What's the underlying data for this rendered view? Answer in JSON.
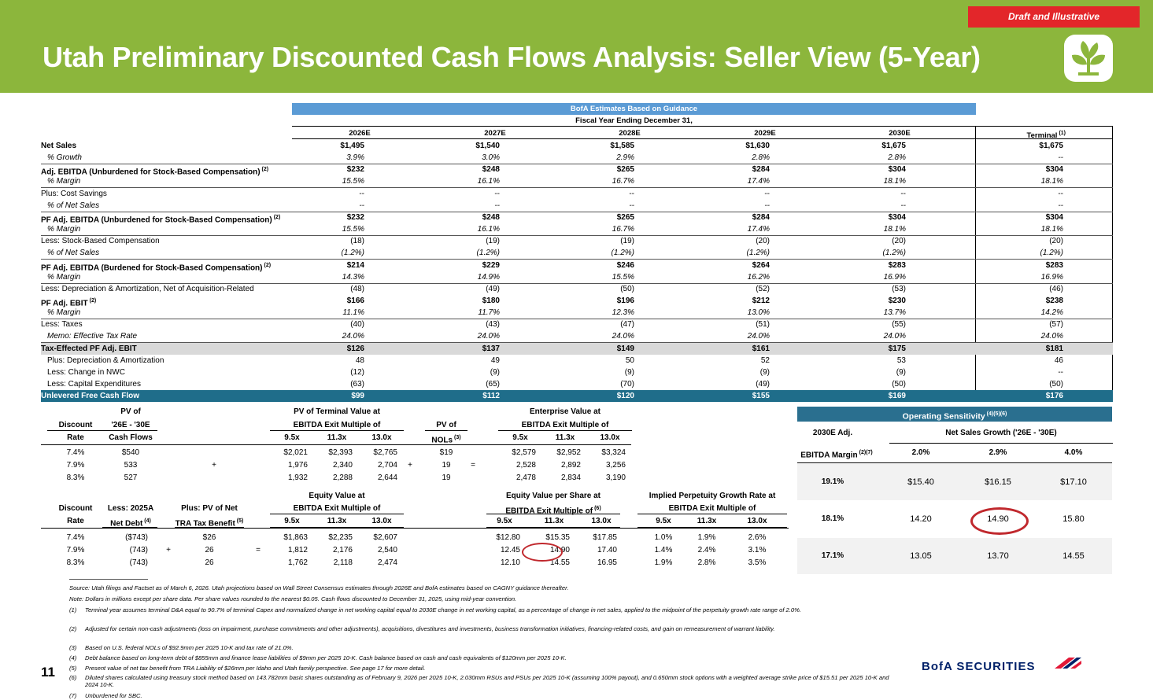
{
  "header": {
    "title": "Utah Preliminary Discounted Cash Flows Analysis: Seller View (5-Year)",
    "draft_badge": "Draft and Illustrative"
  },
  "dcf": {
    "banner": "BofA Estimates Based on Guidance",
    "fiscal_label": "Fiscal Year Ending December 31,",
    "columns": [
      "2026E",
      "2027E",
      "2028E",
      "2029E",
      "2030E",
      "Terminal"
    ],
    "terminal_sup": "(1)",
    "rows": [
      {
        "label": "Net Sales",
        "sup": "",
        "style": "bold",
        "values": [
          "$1,495",
          "$1,540",
          "$1,585",
          "$1,630",
          "$1,675",
          "$1,675"
        ]
      },
      {
        "label": "% Growth",
        "sup": "",
        "style": "italic",
        "values": [
          "3.9%",
          "3.0%",
          "2.9%",
          "2.8%",
          "2.8%",
          "--"
        ]
      },
      {
        "label": "Adj. EBITDA (Unburdened for Stock-Based Compensation)",
        "sup": "(2)",
        "style": "bold",
        "values": [
          "$232",
          "$248",
          "$265",
          "$284",
          "$304",
          "$304"
        ]
      },
      {
        "label": "% Margin",
        "sup": "",
        "style": "italic",
        "values": [
          "15.5%",
          "16.1%",
          "16.7%",
          "17.4%",
          "18.1%",
          "18.1%"
        ]
      },
      {
        "label": "Plus: Cost Savings",
        "sup": "",
        "style": "plain",
        "values": [
          "--",
          "--",
          "--",
          "--",
          "--",
          "--"
        ]
      },
      {
        "label": "% of Net Sales",
        "sup": "",
        "style": "italic",
        "values": [
          "--",
          "--",
          "--",
          "--",
          "--",
          "--"
        ]
      },
      {
        "label": "PF Adj. EBITDA (Unburdened for Stock-Based Compensation)",
        "sup": "(2)",
        "style": "bold",
        "values": [
          "$232",
          "$248",
          "$265",
          "$284",
          "$304",
          "$304"
        ]
      },
      {
        "label": "% Margin",
        "sup": "",
        "style": "italic",
        "values": [
          "15.5%",
          "16.1%",
          "16.7%",
          "17.4%",
          "18.1%",
          "18.1%"
        ]
      },
      {
        "label": "Less: Stock-Based Compensation",
        "sup": "",
        "style": "plain",
        "values": [
          "(18)",
          "(19)",
          "(19)",
          "(20)",
          "(20)",
          "(20)"
        ]
      },
      {
        "label": "% of Net Sales",
        "sup": "",
        "style": "italic",
        "values": [
          "(1.2%)",
          "(1.2%)",
          "(1.2%)",
          "(1.2%)",
          "(1.2%)",
          "(1.2%)"
        ]
      },
      {
        "label": "PF Adj. EBITDA (Burdened for Stock-Based Compensation)",
        "sup": "(2)",
        "style": "bold",
        "values": [
          "$214",
          "$229",
          "$246",
          "$264",
          "$283",
          "$283"
        ]
      },
      {
        "label": "% Margin",
        "sup": "",
        "style": "italic",
        "values": [
          "14.3%",
          "14.9%",
          "15.5%",
          "16.2%",
          "16.9%",
          "16.9%"
        ]
      },
      {
        "label": "Less: Depreciation & Amortization, Net of Acquisition-Related",
        "sup": "",
        "style": "plain",
        "values": [
          "(48)",
          "(49)",
          "(50)",
          "(52)",
          "(53)",
          "(46)"
        ]
      },
      {
        "label": "PF Adj. EBIT",
        "sup": "(2)",
        "style": "bold",
        "values": [
          "$166",
          "$180",
          "$196",
          "$212",
          "$230",
          "$238"
        ]
      },
      {
        "label": "% Margin",
        "sup": "",
        "style": "italic",
        "values": [
          "11.1%",
          "11.7%",
          "12.3%",
          "13.0%",
          "13.7%",
          "14.2%"
        ]
      },
      {
        "label": "Less: Taxes",
        "sup": "",
        "style": "plain",
        "values": [
          "(40)",
          "(43)",
          "(47)",
          "(51)",
          "(55)",
          "(57)"
        ]
      },
      {
        "label": "Memo: Effective Tax Rate",
        "sup": "",
        "style": "italic",
        "values": [
          "24.0%",
          "24.0%",
          "24.0%",
          "24.0%",
          "24.0%",
          "24.0%"
        ]
      },
      {
        "label": "Tax-Effected PF Adj. EBIT",
        "sup": "",
        "style": "grey",
        "values": [
          "$126",
          "$137",
          "$149",
          "$161",
          "$175",
          "$181"
        ]
      },
      {
        "label": "Plus: Depreciation & Amortization",
        "sup": "",
        "style": "indent",
        "values": [
          "48",
          "49",
          "50",
          "52",
          "53",
          "46"
        ]
      },
      {
        "label": "Less: Change in NWC",
        "sup": "",
        "style": "indent",
        "values": [
          "(12)",
          "(9)",
          "(9)",
          "(9)",
          "(9)",
          "--"
        ]
      },
      {
        "label": "Less: Capital Expenditures",
        "sup": "",
        "style": "indent",
        "values": [
          "(63)",
          "(65)",
          "(70)",
          "(49)",
          "(50)",
          "(50)"
        ]
      },
      {
        "label": "Unlevered Free Cash Flow",
        "sup": "",
        "style": "ufcf",
        "values": [
          "$99",
          "$112",
          "$120",
          "$155",
          "$169",
          "$176"
        ]
      }
    ]
  },
  "ev": {
    "h_discount": [
      "Discount",
      "Rate"
    ],
    "h_pv": [
      "PV of",
      "'26E - '30E",
      "Cash Flows"
    ],
    "h_pvtv": [
      "PV of Terminal Value at",
      "EBITDA Exit Multiple of"
    ],
    "h_nols": [
      "PV of",
      "NOLs"
    ],
    "nols_sup": "(3)",
    "h_ev": [
      "Enterprise Value at",
      "EBITDA Exit Multiple of"
    ],
    "multiples": [
      "9.5x",
      "11.3x",
      "13.0x"
    ],
    "rows": [
      {
        "rate": "7.4%",
        "pv": "$540",
        "op1": "",
        "tv": [
          "$2,021",
          "$2,393",
          "$2,765"
        ],
        "op2": "",
        "nol": "$19",
        "op3": "",
        "ev": [
          "$2,579",
          "$2,952",
          "$3,324"
        ]
      },
      {
        "rate": "7.9%",
        "pv": "533",
        "op1": "+",
        "tv": [
          "1,976",
          "2,340",
          "2,704"
        ],
        "op2": "+",
        "nol": "19",
        "op3": "=",
        "ev": [
          "2,528",
          "2,892",
          "3,256"
        ]
      },
      {
        "rate": "8.3%",
        "pv": "527",
        "op1": "",
        "tv": [
          "1,932",
          "2,288",
          "2,644"
        ],
        "op2": "",
        "nol": "19",
        "op3": "",
        "ev": [
          "2,478",
          "2,834",
          "3,190"
        ]
      }
    ]
  },
  "eq": {
    "h_discount": [
      "Discount",
      "Rate"
    ],
    "h_debt": [
      "Less: 2025A",
      "Net Debt"
    ],
    "debt_sup": "(4)",
    "h_tra": [
      "Plus: PV of Net",
      "TRA Tax Benefit"
    ],
    "tra_sup": "(5)",
    "h_eqv": [
      "Equity Value at",
      "EBITDA Exit Multiple of"
    ],
    "h_eps": [
      "Equity Value per Share at",
      "EBITDA Exit Multiple of"
    ],
    "eps_sup": "(6)",
    "h_pgr": [
      "Implied Perpetuity Growth Rate at",
      "EBITDA Exit Multiple of"
    ],
    "multiples": [
      "9.5x",
      "11.3x",
      "13.0x"
    ],
    "rows": [
      {
        "rate": "7.4%",
        "debt": "($743)",
        "op1": "",
        "tra": "$26",
        "op2": "",
        "eqv": [
          "$1,863",
          "$2,235",
          "$2,607"
        ],
        "eps": [
          "$12.80",
          "$15.35",
          "$17.85"
        ],
        "pgr": [
          "1.0%",
          "1.9%",
          "2.6%"
        ]
      },
      {
        "rate": "7.9%",
        "debt": "(743)",
        "op1": "+",
        "tra": "26",
        "op2": "=",
        "eqv": [
          "1,812",
          "2,176",
          "2,540"
        ],
        "eps": [
          "12.45",
          "14.90",
          "17.40"
        ],
        "pgr": [
          "1.4%",
          "2.4%",
          "3.1%"
        ]
      },
      {
        "rate": "8.3%",
        "debt": "(743)",
        "op1": "",
        "tra": "26",
        "op2": "",
        "eqv": [
          "1,762",
          "2,118",
          "2,474"
        ],
        "eps": [
          "12.10",
          "14.55",
          "16.95"
        ],
        "pgr": [
          "1.9%",
          "2.8%",
          "3.5%"
        ]
      }
    ]
  },
  "sens": {
    "title": "Operating Sensitivity",
    "title_sup": "(4)(5)(6)",
    "corner_top": "2030E Adj.",
    "corner_bottom": "EBITDA Margin",
    "corner_sup": "(2)(7)",
    "col_title": "Net Sales Growth ('26E - '30E)",
    "cols": [
      "2.0%",
      "2.9%",
      "4.0%"
    ],
    "rows": [
      {
        "label": "19.1%",
        "values": [
          "$15.40",
          "$16.15",
          "$17.10"
        ]
      },
      {
        "label": "18.1%",
        "values": [
          "14.20",
          "14.90",
          "15.80"
        ]
      },
      {
        "label": "17.1%",
        "values": [
          "13.05",
          "13.70",
          "14.55"
        ]
      }
    ]
  },
  "footnotes": {
    "source": "Source: Utah filings and Factset as of March 6, 2026. Utah projections based on Wall Street Consensus estimates through 2026E and BofA estimates based on CAGNY guidance thereafter.",
    "note": "Note: Dollars in millions except per share data. Per share values rounded to the nearest $0.05. Cash flows discounted to December 31, 2025, using mid-year convention.",
    "items": [
      {
        "key": "(1)",
        "text": "Terminal year assumes terminal D&A equal to 90.7% of terminal Capex and normalized change in net working capital equal to 2030E change in net working capital, as a percentage of change in net sales, applied to the midpoint of the perpetuity growth rate range of 2.0%."
      },
      {
        "key": "(2)",
        "text": "Adjusted for certain non-cash adjustments (loss on impairment, purchase commitments and other adjustments), acquisitions, divestitures and investments, business transformation initiatives, financing-related costs, and gain on remeasurement of warrant liability."
      },
      {
        "key": "(3)",
        "text": "Based on U.S. federal NOLs of $92.9mm per 2025 10-K and tax rate of 21.0%."
      },
      {
        "key": "(4)",
        "text": "Debt balance based on long-term debt of $855mm and finance lease liabilities of $9mm per 2025 10-K. Cash balance based on cash and cash equivalents of $120mm per 2025 10-K."
      },
      {
        "key": "(5)",
        "text": "Present value of net tax benefit from TRA Liability of $26mm per Idaho and Utah family perspective. See page 17 for more detail."
      },
      {
        "key": "(6)",
        "text": "Diluted shares calculated using treasury stock method based on 143.782mm basic shares outstanding as of February 9, 2026 per 2025 10-K, 2.030mm RSUs and PSUs per 2025 10-K (assuming 100% payout), and 0.650mm stock options with a weighted average strike price of $15.51 per 2025 10-K and 2024 10-K."
      },
      {
        "key": "(7)",
        "text": "Unburdened for SBC."
      }
    ]
  },
  "page_number": "11",
  "brand": "BofA SECURITIES",
  "colors": {
    "header_green": "#8cb63c",
    "draft_red": "#e3262a",
    "banner_blue": "#5b9bd5",
    "ufcf_teal": "#1f6d8a",
    "sens_blue": "#2a6f8f",
    "highlight_red": "#c0282d"
  }
}
